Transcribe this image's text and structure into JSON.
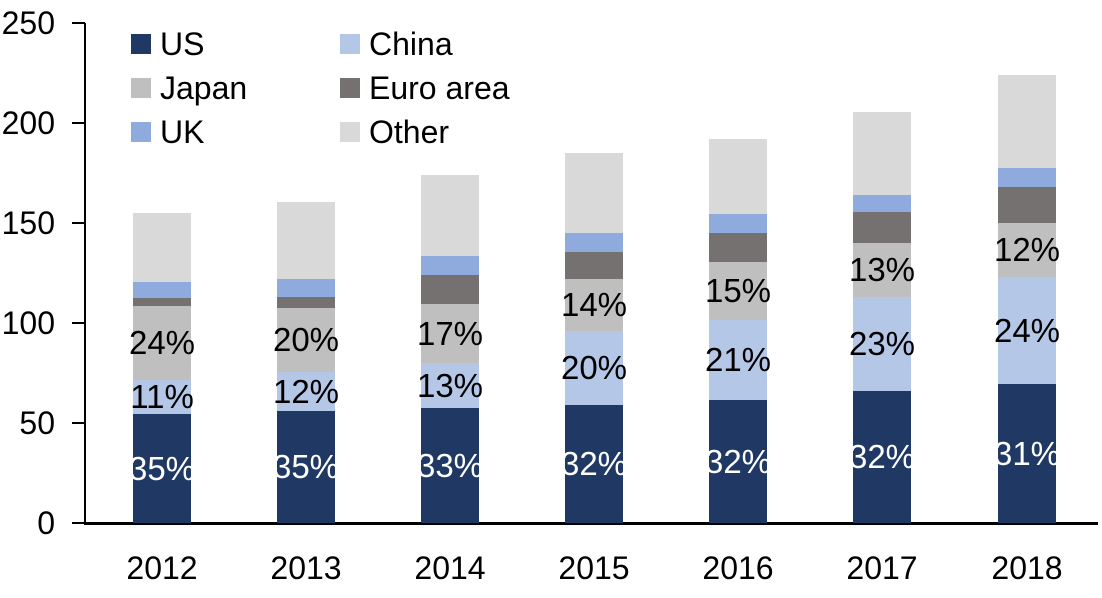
{
  "chart_data": {
    "type": "bar",
    "stacked": true,
    "title": "",
    "xlabel": "",
    "ylabel": "",
    "categories": [
      "2012",
      "2013",
      "2014",
      "2015",
      "2016",
      "2017",
      "2018"
    ],
    "series": [
      {
        "name": "US",
        "color": "#1F3864",
        "values": [
          54.3,
          56.2,
          57.4,
          59.2,
          61.4,
          65.8,
          69.4
        ],
        "segment_labels": [
          "35%",
          "35%",
          "33%",
          "32%",
          "32%",
          "32%",
          "31%"
        ],
        "label_color": "#ffffff"
      },
      {
        "name": "China",
        "color": "#B4C7E7",
        "values": [
          17.1,
          19.3,
          22.6,
          37.0,
          40.3,
          47.3,
          53.8
        ],
        "segment_labels": [
          "11%",
          "12%",
          "13%",
          "20%",
          "21%",
          "23%",
          "24%"
        ],
        "label_color": "#000000"
      },
      {
        "name": "Japan",
        "color": "#BFBFBF",
        "values": [
          37.2,
          32.1,
          29.6,
          25.9,
          28.8,
          26.7,
          26.9
        ],
        "segment_labels": [
          "24%",
          "20%",
          "17%",
          "14%",
          "15%",
          "13%",
          "12%"
        ],
        "label_color": "#000000"
      },
      {
        "name": "Euro area",
        "color": "#767171",
        "values": [
          4.1,
          5.4,
          14.5,
          13.5,
          14.6,
          15.8,
          18.0
        ],
        "segment_labels": null,
        "label_color": null
      },
      {
        "name": "UK",
        "color": "#8FAADC",
        "values": [
          7.9,
          8.9,
          9.2,
          9.5,
          9.2,
          8.5,
          9.5
        ],
        "segment_labels": null,
        "label_color": null
      },
      {
        "name": "Other",
        "color": "#D9D9D9",
        "values": [
          34.4,
          38.6,
          40.7,
          39.9,
          37.7,
          41.4,
          46.4
        ],
        "segment_labels": null,
        "label_color": null
      }
    ],
    "totals": [
      155.0,
      160.5,
      174.0,
      185.0,
      192.0,
      205.5,
      224.0
    ],
    "y_ticks": [
      0,
      50,
      100,
      150,
      200,
      250
    ],
    "ylim": [
      0,
      250
    ],
    "grid": false,
    "legend_position": "top-left-inside",
    "legend_rows": [
      [
        "US",
        "China"
      ],
      [
        "Japan",
        "Euro area"
      ],
      [
        "UK",
        "Other"
      ]
    ]
  },
  "colors": {
    "axis": "#000000",
    "background": "#ffffff"
  }
}
